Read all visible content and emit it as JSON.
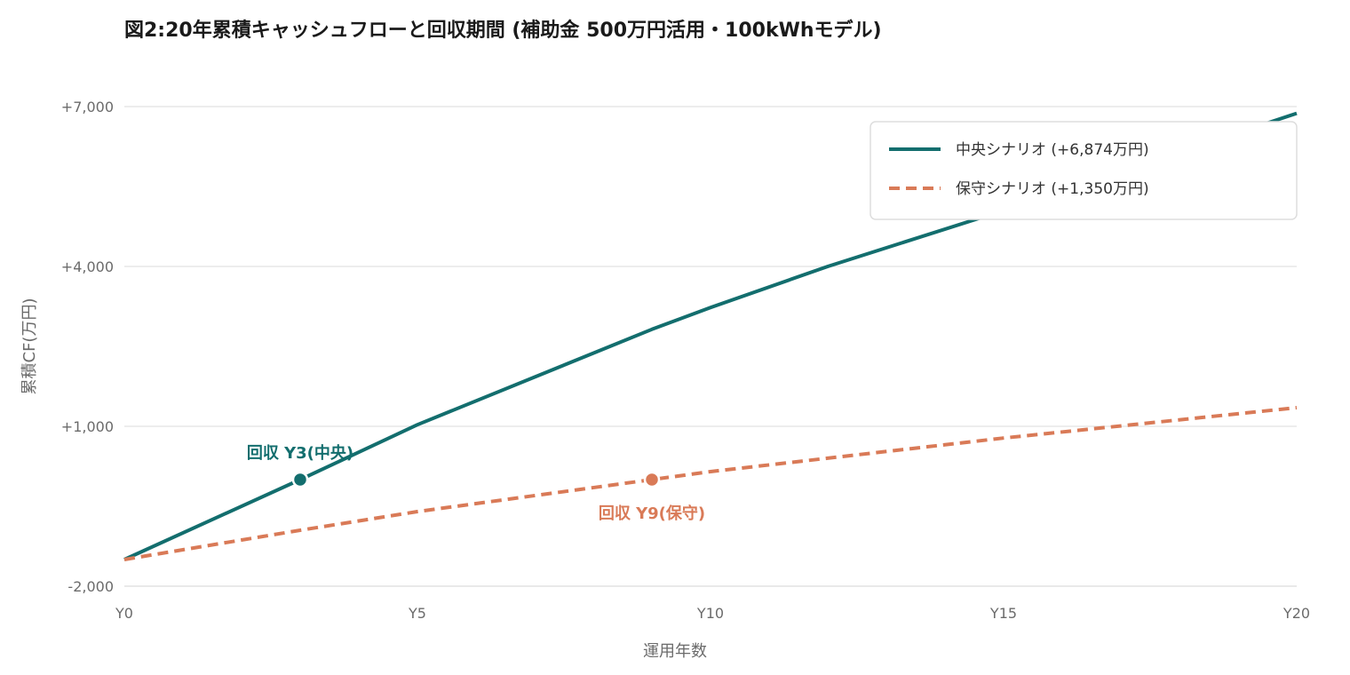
{
  "colors": {
    "central": "#136e6e",
    "conservative": "#d97a57",
    "grid": "#e2e2e2",
    "axis_text": "#6b6b6b"
  },
  "chart_data": {
    "type": "line",
    "title": "図2:20年累積キャッシュフローと回収期間 (補助金 500万円活用・100kWhモデル)",
    "xlabel": "運用年数",
    "ylabel": "累積CF(万円)",
    "x_ticks": [
      {
        "value": 0,
        "label": "Y0"
      },
      {
        "value": 5,
        "label": "Y5"
      },
      {
        "value": 10,
        "label": "Y10"
      },
      {
        "value": 15,
        "label": "Y15"
      },
      {
        "value": 20,
        "label": "Y20"
      }
    ],
    "y_ticks": [
      {
        "value": -2000,
        "label": "-2,000"
      },
      {
        "value": 1000,
        "label": "+1,000"
      },
      {
        "value": 4000,
        "label": "+4,000"
      },
      {
        "value": 7000,
        "label": "+7,000"
      }
    ],
    "xlim": [
      0,
      20
    ],
    "ylim": [
      -2000,
      7000
    ],
    "grid": true,
    "legend_position": "top-right",
    "series": [
      {
        "name": "中央シナリオ (+6,874万円)",
        "style": "solid",
        "color": "#136e6e",
        "x": [
          0,
          3,
          5,
          9,
          10,
          12,
          15,
          20
        ],
        "y": [
          -1500,
          0,
          1030,
          2820,
          3230,
          4000,
          5050,
          6874
        ]
      },
      {
        "name": "保守シナリオ (+1,350万円)",
        "style": "dashed",
        "color": "#d97a57",
        "x": [
          0,
          3,
          5,
          9,
          10,
          15,
          20
        ],
        "y": [
          -1500,
          -950,
          -600,
          0,
          150,
          780,
          1350
        ]
      }
    ],
    "annotations": [
      {
        "text": "回収 Y3(中央)",
        "x": 3,
        "y": 0,
        "series": 0,
        "label_position": "above"
      },
      {
        "text": "回収 Y9(保守)",
        "x": 9,
        "y": 0,
        "series": 1,
        "label_position": "below"
      }
    ]
  }
}
